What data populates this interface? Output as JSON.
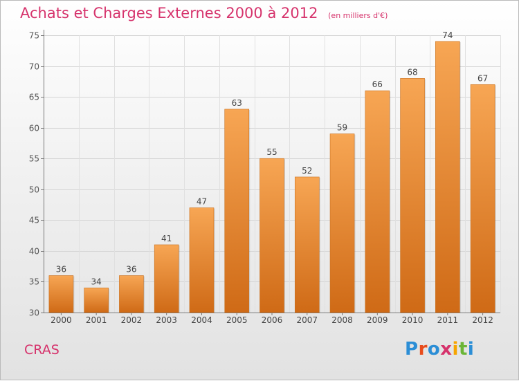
{
  "chart_data": {
    "type": "bar",
    "title": "Achats et Charges Externes 2000 à 2012",
    "subtitle": "(en milliers d'€)",
    "categories": [
      "2000",
      "2001",
      "2002",
      "2003",
      "2004",
      "2005",
      "2006",
      "2007",
      "2008",
      "2009",
      "2010",
      "2011",
      "2012"
    ],
    "values": [
      36,
      34,
      36,
      41,
      47,
      63,
      55,
      52,
      59,
      66,
      68,
      74,
      67
    ],
    "ylim": [
      30,
      75
    ],
    "yticks": [
      30,
      35,
      40,
      45,
      50,
      55,
      60,
      65,
      70,
      75
    ],
    "grid": true,
    "colors": {
      "bar_top": "#f7a654",
      "bar_bottom": "#cf6a16",
      "title": "#d6336c"
    }
  },
  "footer": {
    "city": "CRAS",
    "logo": "Proxiti",
    "logo_colors": [
      "#2b8ed6",
      "#e84c1c",
      "#2b8ed6",
      "#d6336c",
      "#f6a400",
      "#6bb536",
      "#2b8ed6"
    ]
  }
}
